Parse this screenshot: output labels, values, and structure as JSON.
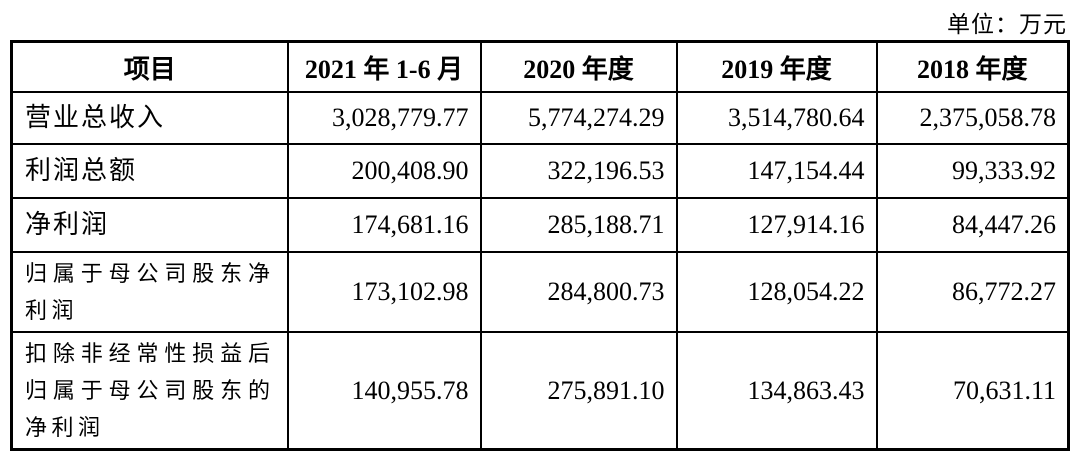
{
  "page": {
    "unit_label": "单位：万元"
  },
  "colors": {
    "border": "#000000",
    "text": "#000000",
    "background": "#ffffff"
  },
  "table": {
    "columns": [
      "项目",
      "2021 年 1-6 月",
      "2020 年度",
      "2019 年度",
      "2018 年度"
    ],
    "rows": [
      {
        "label": "营业总收入",
        "values": [
          "3,028,779.77",
          "5,774,274.29",
          "3,514,780.64",
          "2,375,058.78"
        ]
      },
      {
        "label": "利润总额",
        "values": [
          "200,408.90",
          "322,196.53",
          "147,154.44",
          "99,333.92"
        ]
      },
      {
        "label": "净利润",
        "values": [
          "174,681.16",
          "285,188.71",
          "127,914.16",
          "84,447.26"
        ]
      },
      {
        "label": "归属于母公司股东净利润",
        "values": [
          "173,102.98",
          "284,800.73",
          "128,054.22",
          "86,772.27"
        ]
      },
      {
        "label": "扣除非经常性损益后归属于母公司股东的净利润",
        "values": [
          "140,955.78",
          "275,891.10",
          "134,863.43",
          "70,631.11"
        ]
      }
    ]
  }
}
